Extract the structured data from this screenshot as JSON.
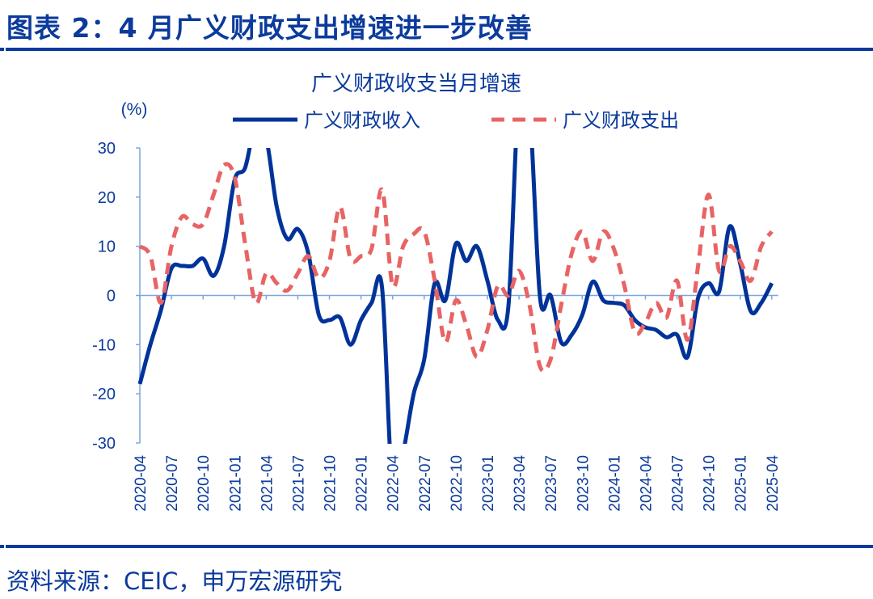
{
  "figure_title": "图表 2：4 月广义财政支出增速进一步改善",
  "source": "资料来源：CEIC，申万宏源研究",
  "colors": {
    "accent": "#0a3a9c",
    "income": "#003399",
    "expenditure": "#e86464",
    "axis": "#7aa6e0"
  },
  "chart_data": {
    "type": "line",
    "title": "广义财政收支当月增速",
    "ylabel": "(%)",
    "ylim": [
      -30,
      30
    ],
    "yticks": [
      30,
      20,
      10,
      0,
      -10,
      -20,
      -30
    ],
    "grid": false,
    "legend_placement": "top",
    "x_start": "2020-04",
    "x_end": "2025-04",
    "xtick_labels": [
      "2020-04",
      "2020-07",
      "2020-10",
      "2021-01",
      "2021-04",
      "2021-07",
      "2021-10",
      "2022-01",
      "2022-04",
      "2022-07",
      "2022-10",
      "2023-01",
      "2023-04",
      "2023-07",
      "2023-10",
      "2024-01",
      "2024-04",
      "2024-07",
      "2024-10",
      "2025-01",
      "2025-04"
    ],
    "series": [
      {
        "name": "广义财政收入",
        "style": "solid",
        "values": [
          -18,
          -10,
          -3,
          5.5,
          6,
          6,
          7.5,
          4,
          10,
          23.5,
          26,
          35,
          32,
          18,
          11.5,
          13.5,
          8.5,
          -4,
          -5,
          -4.5,
          -10,
          -5,
          -1.5,
          1.5,
          -40,
          -32,
          -20,
          -13,
          2.5,
          -1,
          10.5,
          7,
          10,
          3,
          -5,
          -2,
          42,
          38,
          -0.5,
          0,
          -9.5,
          -8,
          -4,
          2.8,
          -1,
          -1.5,
          -2,
          -5,
          -6.5,
          -7,
          -8.5,
          -8,
          -12.5,
          -0.5,
          2.5,
          0.8,
          14,
          6.5,
          -3.2,
          -1.5,
          2.5
        ]
      },
      {
        "name": "广义财政支出",
        "style": "dashed",
        "values": [
          10,
          8,
          -1.5,
          10,
          16,
          14.5,
          14.5,
          20.5,
          26.5,
          24,
          10.5,
          -1.5,
          4.5,
          2.5,
          1,
          4.5,
          8,
          3.5,
          7,
          18,
          7.5,
          8,
          9.5,
          21.5,
          2,
          10,
          12.5,
          13,
          3,
          -9.5,
          -1,
          -6,
          -12.5,
          -7,
          2,
          0,
          5,
          -2,
          -14.5,
          -13,
          -2,
          8.5,
          13,
          7,
          13,
          9.5,
          2,
          -7.5,
          -5.5,
          -1.5,
          -4.5,
          3,
          -9,
          6,
          20.5,
          5,
          10,
          7,
          3,
          10,
          13
        ]
      }
    ]
  }
}
